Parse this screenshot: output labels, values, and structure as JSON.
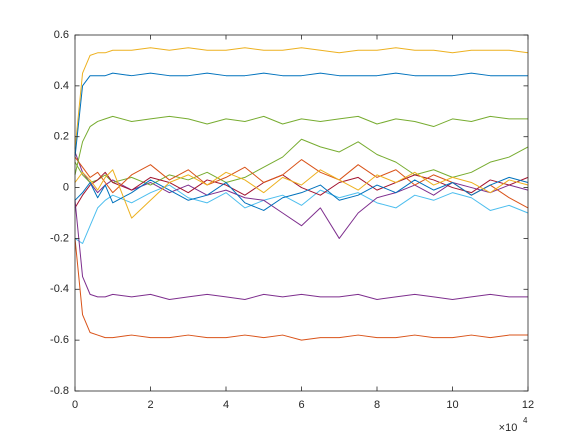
{
  "chart_data": {
    "type": "line",
    "x_exponent_base": "×10",
    "x_exponent": "4",
    "x": [
      0,
      0.2,
      0.4,
      0.6,
      0.8,
      1,
      1.5,
      2,
      2.5,
      3,
      3.5,
      4,
      4.5,
      5,
      5.5,
      6,
      6.5,
      7,
      7.5,
      8,
      8.5,
      9,
      9.5,
      10,
      10.5,
      11,
      11.5,
      12
    ],
    "xlim": [
      0,
      12
    ],
    "xticks": [
      0,
      2,
      4,
      6,
      8,
      10,
      12
    ],
    "ylim": [
      -0.8,
      0.6
    ],
    "yticks": [
      -0.8,
      -0.6,
      -0.4,
      -0.2,
      0,
      0.2,
      0.4,
      0.6
    ],
    "grid": false,
    "box": true,
    "series": [
      {
        "color": "#4DBEEE",
        "values": [
          -0.2,
          -0.22,
          -0.15,
          -0.08,
          -0.05,
          -0.03,
          -0.06,
          -0.02,
          0.01,
          -0.04,
          -0.06,
          -0.02,
          -0.08,
          -0.05,
          -0.03,
          -0.07,
          -0.01,
          -0.04,
          -0.02,
          -0.06,
          -0.08,
          -0.03,
          -0.05,
          -0.02,
          -0.04,
          -0.09,
          -0.07,
          -0.1
        ]
      },
      {
        "color": "#7E2F8E",
        "values": [
          0.14,
          0.06,
          0.02,
          -0.02,
          0.01,
          0.03,
          -0.01,
          0.02,
          -0.02,
          0.01,
          -0.03,
          -0.01,
          -0.04,
          -0.05,
          -0.1,
          -0.15,
          -0.08,
          -0.2,
          -0.1,
          -0.04,
          -0.02,
          0.01,
          -0.03,
          0.02,
          0,
          -0.02,
          0.01,
          -0.01
        ]
      },
      {
        "color": "#77AC30",
        "values": [
          0.1,
          0.05,
          0.02,
          0.03,
          0.05,
          0.02,
          0.04,
          0.01,
          0.05,
          0.03,
          0.06,
          0.02,
          0.04,
          0.08,
          0.12,
          0.19,
          0.16,
          0.14,
          0.18,
          0.13,
          0.1,
          0.05,
          0.07,
          0.04,
          0.06,
          0.1,
          0.12,
          0.16
        ]
      },
      {
        "color": "#A2142F",
        "values": [
          -0.08,
          -0.03,
          0.01,
          0.03,
          0.06,
          0.02,
          -0.01,
          0.04,
          0.02,
          -0.02,
          0.03,
          0.01,
          -0.03,
          0.02,
          0.05,
          0,
          -0.03,
          0.02,
          0.04,
          -0.01,
          0.02,
          0.05,
          0.03,
          0,
          -0.02,
          0.03,
          0.01,
          0.04
        ]
      },
      {
        "color": "#D95319",
        "values": [
          0.12,
          0.08,
          0.04,
          0.06,
          0.02,
          -0.02,
          0.05,
          0.09,
          0.03,
          0.07,
          0.01,
          0.04,
          0.08,
          0.02,
          0.05,
          0.11,
          0.06,
          0.03,
          0.09,
          0.04,
          0.07,
          0.01,
          0.05,
          0.02,
          -0.03,
          0.01,
          -0.04,
          -0.08
        ]
      },
      {
        "color": "#0072BD",
        "values": [
          -0.05,
          -0.02,
          0.02,
          -0.04,
          0.01,
          -0.06,
          -0.02,
          0.03,
          -0.01,
          -0.05,
          -0.03,
          0.02,
          -0.06,
          -0.09,
          -0.04,
          -0.02,
          0.01,
          -0.05,
          -0.03,
          0.01,
          -0.02,
          0.03,
          -0.01,
          0.02,
          -0.03,
          0.01,
          0.04,
          0.02
        ]
      },
      {
        "color": "#EDB120",
        "values": [
          0.02,
          0.06,
          0.03,
          -0.01,
          0.04,
          0.07,
          -0.12,
          -0.05,
          0.02,
          0.05,
          0.01,
          0.06,
          0.03,
          -0.02,
          0.04,
          0.01,
          0.07,
          0.03,
          -0.01,
          0.05,
          0.02,
          0.06,
          0.01,
          0.04,
          0.02,
          -0.02,
          0.03,
          0.01
        ]
      },
      {
        "color": "#EDB120",
        "values": [
          0.15,
          0.45,
          0.52,
          0.53,
          0.53,
          0.54,
          0.54,
          0.55,
          0.54,
          0.55,
          0.54,
          0.54,
          0.55,
          0.54,
          0.54,
          0.55,
          0.54,
          0.53,
          0.54,
          0.54,
          0.55,
          0.54,
          0.54,
          0.53,
          0.54,
          0.54,
          0.54,
          0.53
        ]
      },
      {
        "color": "#0072BD",
        "values": [
          0.12,
          0.4,
          0.44,
          0.44,
          0.44,
          0.45,
          0.44,
          0.45,
          0.44,
          0.44,
          0.45,
          0.44,
          0.44,
          0.45,
          0.44,
          0.44,
          0.45,
          0.44,
          0.44,
          0.44,
          0.45,
          0.44,
          0.44,
          0.44,
          0.45,
          0.44,
          0.44,
          0.44
        ]
      },
      {
        "color": "#77AC30",
        "values": [
          0.05,
          0.18,
          0.24,
          0.26,
          0.27,
          0.28,
          0.26,
          0.27,
          0.28,
          0.27,
          0.25,
          0.27,
          0.26,
          0.28,
          0.25,
          0.27,
          0.26,
          0.27,
          0.28,
          0.25,
          0.27,
          0.26,
          0.24,
          0.27,
          0.26,
          0.28,
          0.27,
          0.27
        ]
      },
      {
        "color": "#7E2F8E",
        "values": [
          -0.05,
          -0.35,
          -0.42,
          -0.43,
          -0.43,
          -0.42,
          -0.43,
          -0.42,
          -0.44,
          -0.43,
          -0.42,
          -0.43,
          -0.44,
          -0.42,
          -0.43,
          -0.42,
          -0.43,
          -0.43,
          -0.42,
          -0.44,
          -0.43,
          -0.42,
          -0.43,
          -0.44,
          -0.43,
          -0.42,
          -0.43,
          -0.43
        ]
      },
      {
        "color": "#D95319",
        "values": [
          -0.2,
          -0.5,
          -0.57,
          -0.58,
          -0.59,
          -0.59,
          -0.58,
          -0.59,
          -0.59,
          -0.58,
          -0.59,
          -0.59,
          -0.58,
          -0.59,
          -0.58,
          -0.6,
          -0.59,
          -0.59,
          -0.58,
          -0.59,
          -0.59,
          -0.58,
          -0.59,
          -0.59,
          -0.58,
          -0.59,
          -0.58,
          -0.58
        ]
      }
    ]
  }
}
